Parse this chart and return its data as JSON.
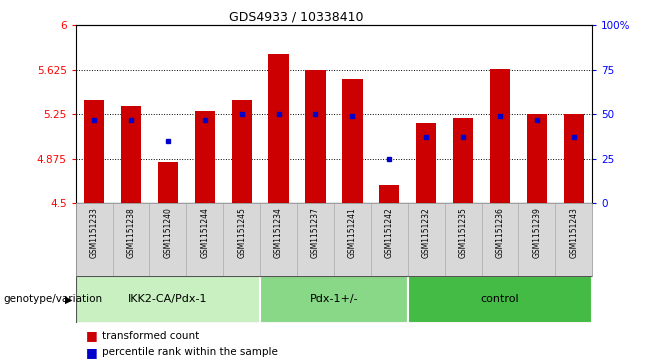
{
  "title": "GDS4933 / 10338410",
  "samples": [
    "GSM1151233",
    "GSM1151238",
    "GSM1151240",
    "GSM1151244",
    "GSM1151245",
    "GSM1151234",
    "GSM1151237",
    "GSM1151241",
    "GSM1151242",
    "GSM1151232",
    "GSM1151235",
    "GSM1151236",
    "GSM1151239",
    "GSM1151243"
  ],
  "red_values": [
    5.37,
    5.32,
    4.85,
    5.28,
    5.37,
    5.76,
    5.62,
    5.55,
    4.65,
    5.18,
    5.22,
    5.63,
    5.25,
    5.25
  ],
  "blue_pct": [
    47,
    47,
    35,
    47,
    50,
    50,
    50,
    49,
    25,
    37,
    37,
    49,
    47,
    37
  ],
  "y_min": 4.5,
  "y_max": 6.0,
  "y_ticks": [
    4.5,
    4.875,
    5.25,
    5.625,
    6.0
  ],
  "y2_ticks": [
    0,
    25,
    50,
    75,
    100
  ],
  "groups": [
    {
      "label": "IKK2-CA/Pdx-1",
      "start": 0,
      "end": 5,
      "color": "#c8f0c0"
    },
    {
      "label": "Pdx-1+/-",
      "start": 5,
      "end": 9,
      "color": "#88d888"
    },
    {
      "label": "control",
      "start": 9,
      "end": 14,
      "color": "#44bb44"
    }
  ],
  "bar_color": "#cc0000",
  "dot_color": "#0000cc",
  "bar_bottom": 4.5,
  "legend_red": "transformed count",
  "legend_blue": "percentile rank within the sample",
  "xlabel_left": "genotype/variation",
  "bg_color": "#d8d8d8",
  "plot_bg": "#ffffff"
}
